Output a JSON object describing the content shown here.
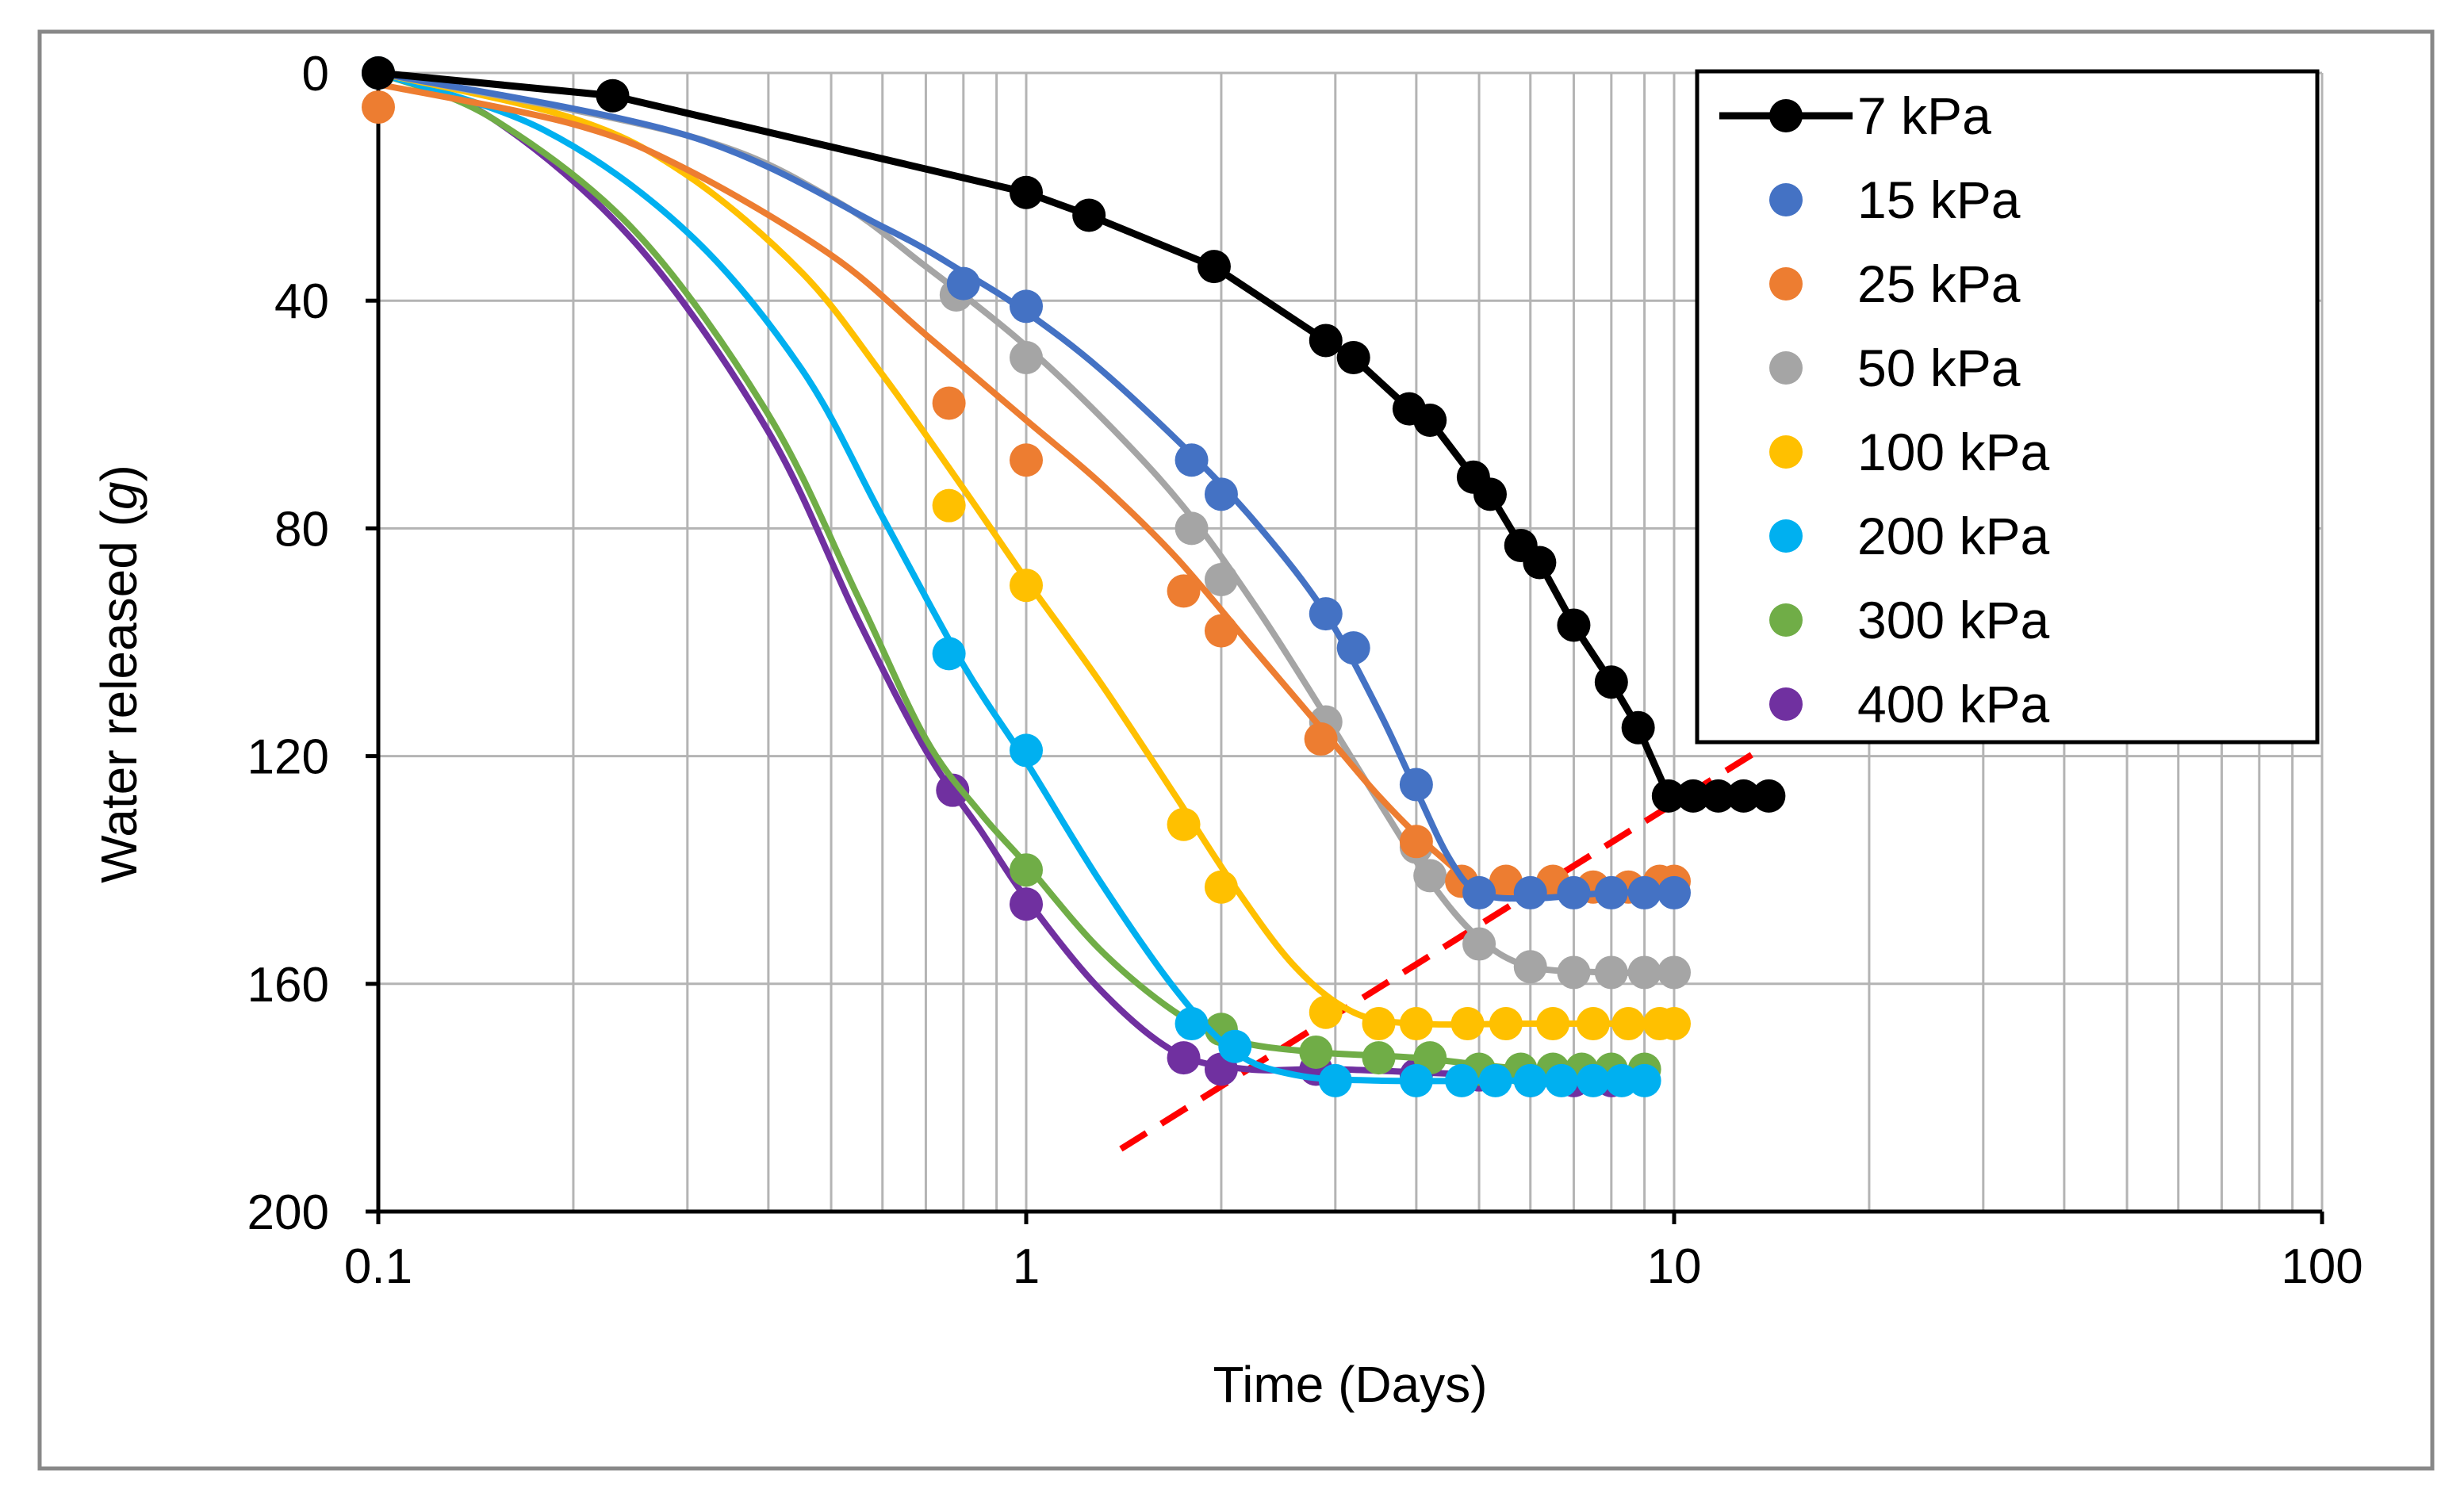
{
  "chart_data": {
    "type": "scatter",
    "title": "",
    "xlabel": "Time (Days)",
    "ylabel": "Water released (g)",
    "ylabel_parts": {
      "before": "Water released (",
      "italic": "g",
      "after": ")"
    },
    "x_scale": "log",
    "xlim": [
      0.1,
      100
    ],
    "ylim": [
      0,
      200
    ],
    "y_inverted": true,
    "grid": true,
    "legend_position": "top-right",
    "x_ticks": [
      0.1,
      1,
      10,
      100
    ],
    "x_tick_labels": [
      "0.1",
      "1",
      "10",
      "100"
    ],
    "y_ticks": [
      0,
      40,
      80,
      120,
      160,
      200
    ],
    "y_tick_labels": [
      "0",
      "40",
      "80",
      "120",
      "160",
      "200"
    ],
    "series": [
      {
        "name": "7 kPa",
        "color": "#000000",
        "style": "line-markers",
        "points": [
          [
            0.1,
            0
          ],
          [
            0.23,
            4
          ],
          [
            1.0,
            21
          ],
          [
            1.25,
            25
          ],
          [
            1.95,
            34
          ],
          [
            2.9,
            47
          ],
          [
            3.2,
            50
          ],
          [
            3.9,
            59
          ],
          [
            4.2,
            61
          ],
          [
            4.9,
            71
          ],
          [
            5.2,
            74
          ],
          [
            5.8,
            83
          ],
          [
            6.2,
            86
          ],
          [
            7.0,
            97
          ],
          [
            8.0,
            107
          ],
          [
            8.8,
            115
          ],
          [
            9.8,
            127
          ],
          [
            10.7,
            127
          ],
          [
            11.7,
            127
          ],
          [
            12.8,
            127
          ],
          [
            14.0,
            127
          ]
        ]
      },
      {
        "name": "15 kPa",
        "color": "#4472c4",
        "style": "markers-smooth",
        "points": [
          [
            0.1,
            0
          ],
          [
            0.8,
            37
          ],
          [
            1.0,
            41
          ],
          [
            1.8,
            68
          ],
          [
            2.0,
            74
          ],
          [
            2.9,
            95
          ],
          [
            3.2,
            101
          ],
          [
            4.0,
            125
          ],
          [
            5.0,
            144
          ],
          [
            6.0,
            144
          ],
          [
            7.0,
            144
          ],
          [
            8.0,
            144
          ],
          [
            9.0,
            144
          ],
          [
            10.0,
            144
          ]
        ],
        "curve": [
          [
            0.1,
            0
          ],
          [
            0.3,
            11
          ],
          [
            0.6,
            27
          ],
          [
            0.8,
            35
          ],
          [
            1.0,
            42
          ],
          [
            1.3,
            52
          ],
          [
            1.8,
            67
          ],
          [
            2.3,
            80
          ],
          [
            2.9,
            95
          ],
          [
            3.5,
            112
          ],
          [
            4.0,
            126
          ],
          [
            4.5,
            138
          ],
          [
            5.0,
            144
          ],
          [
            6.0,
            145
          ],
          [
            8.0,
            144
          ],
          [
            10.0,
            144
          ]
        ]
      },
      {
        "name": "25 kPa",
        "color": "#ed7d31",
        "style": "markers-smooth",
        "points": [
          [
            0.1,
            6
          ],
          [
            0.76,
            58
          ],
          [
            1.0,
            68
          ],
          [
            1.75,
            91
          ],
          [
            2.0,
            98
          ],
          [
            2.85,
            117
          ],
          [
            4.0,
            135
          ],
          [
            4.7,
            142
          ],
          [
            5.5,
            142
          ],
          [
            6.5,
            142
          ],
          [
            7.5,
            143
          ],
          [
            8.5,
            143
          ],
          [
            9.5,
            142
          ],
          [
            10.0,
            142
          ]
        ],
        "curve": [
          [
            0.1,
            2
          ],
          [
            0.2,
            9
          ],
          [
            0.3,
            17
          ],
          [
            0.5,
            32
          ],
          [
            0.7,
            46
          ],
          [
            1.0,
            61
          ],
          [
            1.3,
            72
          ],
          [
            1.7,
            85
          ],
          [
            2.2,
            100
          ],
          [
            2.8,
            114
          ],
          [
            3.5,
            127
          ],
          [
            4.3,
            137
          ],
          [
            5.0,
            142
          ],
          [
            6.5,
            143
          ],
          [
            8.5,
            142
          ],
          [
            10.0,
            142
          ]
        ]
      },
      {
        "name": "50 kPa",
        "color": "#a5a5a5",
        "style": "markers-smooth",
        "points": [
          [
            0.1,
            0
          ],
          [
            0.78,
            39
          ],
          [
            1.0,
            50
          ],
          [
            1.8,
            80
          ],
          [
            2.0,
            89
          ],
          [
            2.9,
            114
          ],
          [
            4.0,
            136
          ],
          [
            4.2,
            141
          ],
          [
            5.0,
            153
          ],
          [
            6.0,
            157
          ],
          [
            7.0,
            158
          ],
          [
            8.0,
            158
          ],
          [
            9.0,
            158
          ],
          [
            10.0,
            158
          ]
        ],
        "curve": [
          [
            0.1,
            0
          ],
          [
            0.3,
            11
          ],
          [
            0.5,
            22
          ],
          [
            0.7,
            34
          ],
          [
            1.0,
            48
          ],
          [
            1.4,
            64
          ],
          [
            1.8,
            78
          ],
          [
            2.3,
            95
          ],
          [
            2.9,
            113
          ],
          [
            3.5,
            128
          ],
          [
            4.2,
            142
          ],
          [
            5.0,
            152
          ],
          [
            6.0,
            157
          ],
          [
            8.0,
            158
          ],
          [
            10.0,
            158
          ]
        ]
      },
      {
        "name": "100 kPa",
        "color": "#ffc000",
        "style": "markers-smooth",
        "points": [
          [
            0.1,
            0
          ],
          [
            0.76,
            76
          ],
          [
            1.0,
            90
          ],
          [
            1.75,
            132
          ],
          [
            2.0,
            143
          ],
          [
            2.9,
            165
          ],
          [
            3.5,
            167
          ],
          [
            4.0,
            167
          ],
          [
            4.8,
            167
          ],
          [
            5.5,
            167
          ],
          [
            6.5,
            167
          ],
          [
            7.5,
            167
          ],
          [
            8.5,
            167
          ],
          [
            9.5,
            167
          ],
          [
            10.0,
            167
          ]
        ],
        "curve": [
          [
            0.1,
            0
          ],
          [
            0.2,
            8
          ],
          [
            0.3,
            18
          ],
          [
            0.45,
            35
          ],
          [
            0.6,
            53
          ],
          [
            0.8,
            73
          ],
          [
            1.0,
            89
          ],
          [
            1.3,
            107
          ],
          [
            1.7,
            127
          ],
          [
            2.1,
            143
          ],
          [
            2.6,
            157
          ],
          [
            3.2,
            165
          ],
          [
            4.0,
            167
          ],
          [
            6.0,
            167
          ],
          [
            10.0,
            167
          ]
        ]
      },
      {
        "name": "200 kPa",
        "color": "#00b0f0",
        "style": "markers-smooth",
        "points": [
          [
            0.1,
            0
          ],
          [
            0.76,
            102
          ],
          [
            1.0,
            119
          ],
          [
            1.8,
            167
          ],
          [
            2.1,
            171
          ],
          [
            3.0,
            177
          ],
          [
            4.0,
            177
          ],
          [
            4.7,
            177
          ],
          [
            5.3,
            177
          ],
          [
            6.0,
            177
          ],
          [
            6.7,
            177
          ],
          [
            7.5,
            177
          ],
          [
            8.3,
            177
          ],
          [
            9.0,
            177
          ]
        ],
        "curve": [
          [
            0.1,
            0
          ],
          [
            0.18,
            10
          ],
          [
            0.3,
            28
          ],
          [
            0.45,
            52
          ],
          [
            0.6,
            78
          ],
          [
            0.8,
            104
          ],
          [
            1.0,
            121
          ],
          [
            1.3,
            142
          ],
          [
            1.7,
            161
          ],
          [
            2.1,
            172
          ],
          [
            2.6,
            176
          ],
          [
            3.5,
            177
          ],
          [
            6.0,
            177
          ],
          [
            9.0,
            177
          ]
        ]
      },
      {
        "name": "300 kPa",
        "color": "#70ad47",
        "style": "markers-smooth",
        "points": [
          [
            0.1,
            0
          ],
          [
            1.0,
            140
          ],
          [
            2.0,
            168
          ],
          [
            2.8,
            172
          ],
          [
            3.5,
            173
          ],
          [
            4.2,
            173
          ],
          [
            5.0,
            175
          ],
          [
            5.8,
            175
          ],
          [
            6.5,
            175
          ],
          [
            7.2,
            175
          ],
          [
            8.0,
            175
          ],
          [
            9.0,
            175
          ]
        ],
        "curve": [
          [
            0.1,
            0
          ],
          [
            0.15,
            8
          ],
          [
            0.25,
            28
          ],
          [
            0.4,
            60
          ],
          [
            0.55,
            92
          ],
          [
            0.7,
            117
          ],
          [
            0.85,
            130
          ],
          [
            1.0,
            139
          ],
          [
            1.3,
            154
          ],
          [
            1.7,
            165
          ],
          [
            2.1,
            170
          ],
          [
            2.8,
            172
          ],
          [
            4.0,
            173
          ],
          [
            6.0,
            175
          ],
          [
            9.0,
            175
          ]
        ]
      },
      {
        "name": "400 kPa",
        "color": "#7030a0",
        "style": "markers-smooth",
        "points": [
          [
            0.1,
            0
          ],
          [
            0.77,
            126
          ],
          [
            1.0,
            146
          ],
          [
            1.75,
            173
          ],
          [
            2.0,
            175
          ],
          [
            2.8,
            175
          ],
          [
            4.0,
            176
          ],
          [
            5.0,
            176
          ],
          [
            6.0,
            177
          ],
          [
            7.0,
            177
          ],
          [
            8.0,
            177
          ]
        ],
        "curve": [
          [
            0.1,
            0
          ],
          [
            0.15,
            8
          ],
          [
            0.25,
            30
          ],
          [
            0.4,
            63
          ],
          [
            0.55,
            96
          ],
          [
            0.7,
            119
          ],
          [
            0.85,
            133
          ],
          [
            1.0,
            145
          ],
          [
            1.3,
            161
          ],
          [
            1.7,
            172
          ],
          [
            2.2,
            175
          ],
          [
            3.0,
            175
          ],
          [
            5.0,
            176
          ],
          [
            8.0,
            177
          ]
        ]
      }
    ],
    "annotation_line": {
      "name": "trend",
      "color": "#ff0000",
      "style": "dashed",
      "from": [
        1.4,
        189
      ],
      "to": [
        13.5,
        119
      ]
    }
  }
}
